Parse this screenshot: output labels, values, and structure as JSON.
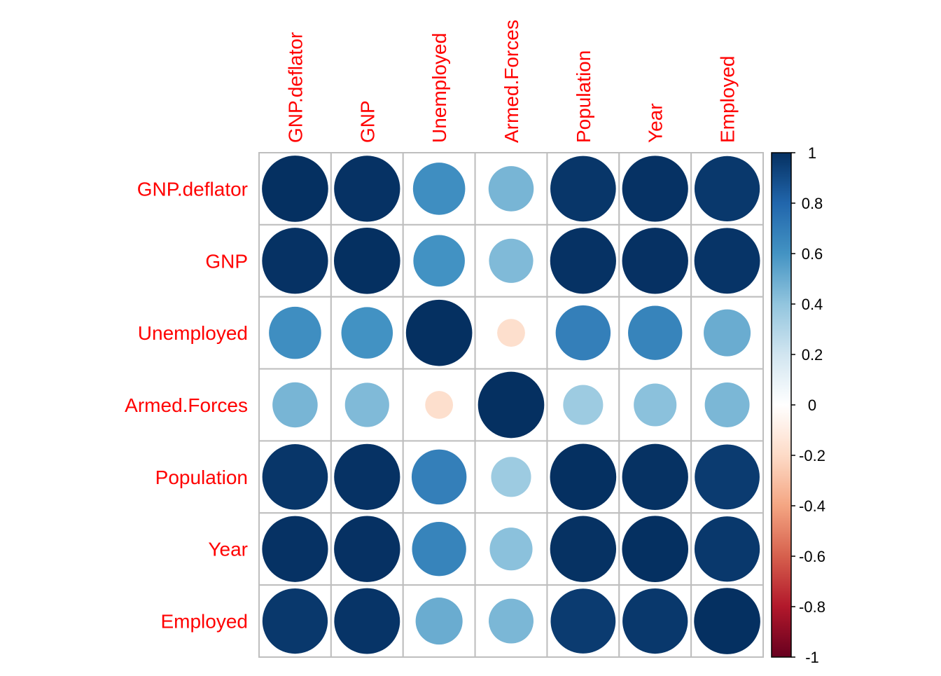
{
  "chart_data": {
    "type": "heatmap",
    "subtype": "correlation-circles",
    "title": "",
    "variables": [
      "GNP.deflator",
      "GNP",
      "Unemployed",
      "Armed.Forces",
      "Population",
      "Year",
      "Employed"
    ],
    "matrix": [
      [
        1.0,
        0.992,
        0.621,
        0.465,
        0.979,
        0.991,
        0.971
      ],
      [
        0.992,
        1.0,
        0.604,
        0.446,
        0.991,
        0.995,
        0.984
      ],
      [
        0.621,
        0.604,
        1.0,
        -0.177,
        0.687,
        0.668,
        0.502
      ],
      [
        0.465,
        0.446,
        -0.177,
        1.0,
        0.364,
        0.417,
        0.457
      ],
      [
        0.979,
        0.991,
        0.687,
        0.364,
        1.0,
        0.994,
        0.96
      ],
      [
        0.991,
        0.995,
        0.668,
        0.417,
        0.994,
        1.0,
        0.971
      ],
      [
        0.971,
        0.984,
        0.502,
        0.457,
        0.96,
        0.971,
        1.0
      ]
    ],
    "colorbar": {
      "range": [
        -1,
        1
      ],
      "ticks": [
        "1",
        "0.8",
        "0.6",
        "0.4",
        "0.2",
        "0",
        "-0.2",
        "-0.4",
        "-0.6",
        "-0.8",
        "-1"
      ],
      "colors": [
        "#67001F",
        "#B2182B",
        "#D6604D",
        "#F4A582",
        "#FDDBC7",
        "#FFFFFF",
        "#D1E5F0",
        "#92C5DE",
        "#4393C3",
        "#2166AC",
        "#053061"
      ]
    },
    "label_color": "#FF0000",
    "grid": true
  }
}
